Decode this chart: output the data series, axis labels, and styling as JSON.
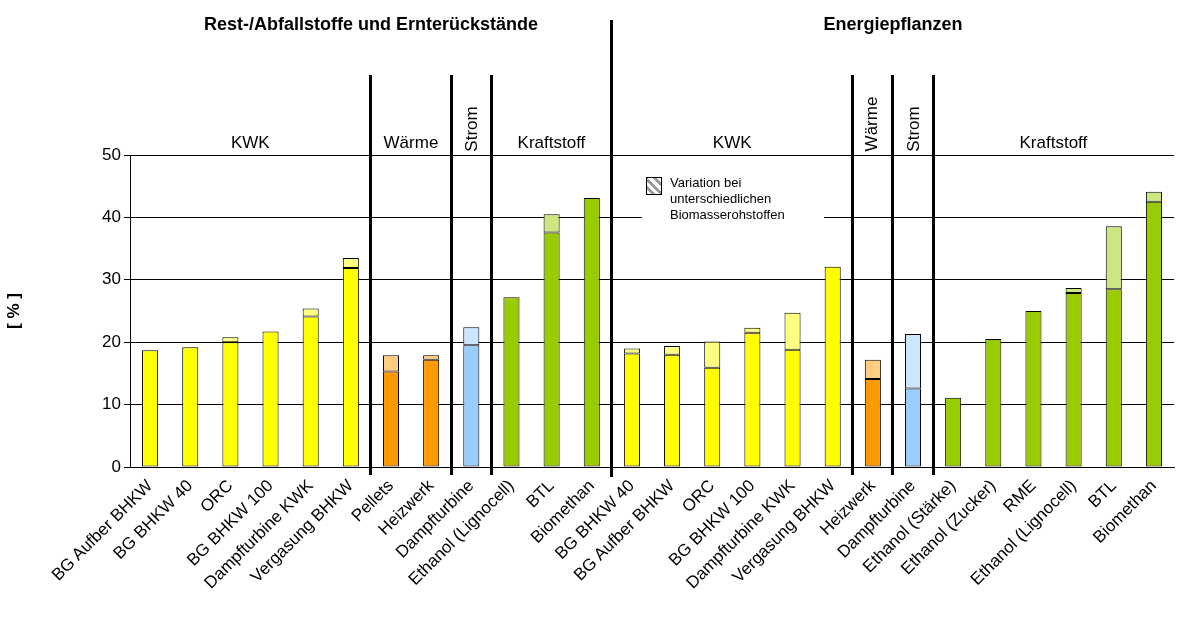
{
  "chart_data": {
    "type": "bar",
    "stacked": true,
    "categories": [
      "BG Aufber BHKW",
      "BG BHKW 40",
      "ORC",
      "BG BHKW 100",
      "Dampfturbine KWK",
      "Vergasung BHKW",
      "Pellets",
      "Heizwerk",
      "Dampfturbine",
      "Ethanol (Lignocell)",
      "BTL",
      "Biomethan",
      "BG BHKW 40",
      "BG Aufber BHKW",
      "ORC",
      "BG BHKW 100",
      "Dampfturbine KWK",
      "Vergasung BHKW",
      "Heizwerk",
      "Dampfturbine",
      "Ethanol (Stärke)",
      "Ethanol (Zucker)",
      "RME",
      "Ethanol (Lignocell)",
      "BTL",
      "Biomethan"
    ],
    "series": [
      {
        "colors": [
          "#ffff00",
          "#ffff00",
          "#ffff00",
          "#ffff00",
          "#ffff00",
          "#ffff00",
          "#ff9900",
          "#ff9900",
          "#99ccff",
          "#99cc00",
          "#99cc00",
          "#99cc00",
          "#ffff00",
          "#ffff00",
          "#ffff00",
          "#ffff00",
          "#ffff00",
          "#ffff00",
          "#ff9900",
          "#99ccff",
          "#99cc00",
          "#99cc00",
          "#99cc00",
          "#99cc00",
          "#99cc00",
          "#99cc00"
        ],
        "values": [
          18.7,
          19.2,
          20.0,
          21.7,
          24.1,
          31.9,
          15.3,
          17.2,
          19.5,
          27.2,
          37.6,
          43.1,
          18.2,
          18.0,
          15.9,
          21.5,
          18.8,
          32.1,
          14.1,
          12.6,
          11.1,
          20.5,
          25.0,
          27.9,
          28.5,
          42.5
        ]
      },
      {
        "name": "Variation bei unterschiedlichen Biomasserohstoffen",
        "color": "#999999",
        "colors": [
          "#ffff80",
          "#ffff80",
          "#ffff80",
          "#ffff80",
          "#ffff80",
          "#ffff80",
          "#ffcc80",
          "#ffcc80",
          "#cce6ff",
          "#cce680",
          "#cce680",
          "#cce680",
          "#ffff80",
          "#ffff80",
          "#ffff80",
          "#ffff80",
          "#ffff80",
          "#ffff80",
          "#ffcc80",
          "#cce6ff",
          "#cce680",
          "#cce680",
          "#cce680",
          "#cce680",
          "#cce680",
          "#cce680"
        ],
        "values": [
          null,
          null,
          0.8,
          null,
          1.3,
          1.6,
          2.6,
          0.7,
          2.9,
          null,
          2.9,
          null,
          0.8,
          1.4,
          4.2,
          0.8,
          5.9,
          null,
          3.1,
          8.7,
          null,
          null,
          null,
          0.8,
          10.1,
          1.6
        ]
      }
    ],
    "ylabel": "[ % ]",
    "ylim": [
      0,
      50
    ],
    "yticks": [
      0,
      10,
      20,
      30,
      40,
      50
    ],
    "grid": "y",
    "legend": "top",
    "annotations": [
      "Rest-/Abfallstoffe und Ernterückstände",
      "Energiepflanzen",
      "KWK",
      "Wärme",
      "Strom",
      "Kraftstoff",
      "KWK",
      "Wärme",
      "Strom",
      "Kraftstoff"
    ]
  }
}
